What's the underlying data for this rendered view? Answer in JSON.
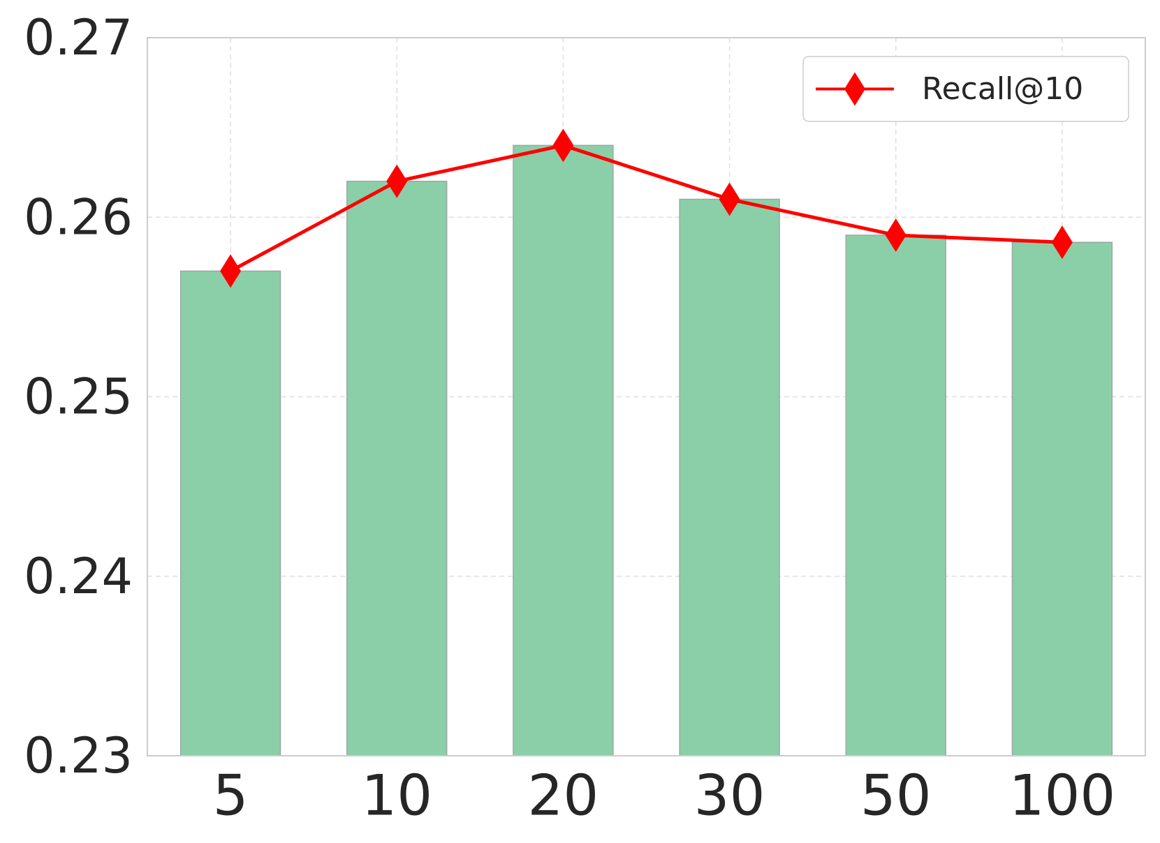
{
  "chart_data": {
    "type": "bar",
    "categories": [
      "5",
      "10",
      "20",
      "30",
      "50",
      "100"
    ],
    "bar_values": [
      0.257,
      0.262,
      0.264,
      0.261,
      0.259,
      0.2586
    ],
    "series": [
      {
        "name": "Recall@10",
        "type": "line",
        "values": [
          0.257,
          0.262,
          0.264,
          0.261,
          0.259,
          0.2586
        ]
      }
    ],
    "y_ticks": [
      "0.23",
      "0.24",
      "0.25",
      "0.26",
      "0.27"
    ],
    "ylim": [
      0.23,
      0.27
    ],
    "grid": true,
    "legend_position": "top-right",
    "colors": {
      "bar_fill": "#8bcfa9",
      "bar_edge": "#9aa89f",
      "line": "#ff0000",
      "grid": "#dedede",
      "axes_border": "#cccccc",
      "text": "#262626"
    }
  }
}
